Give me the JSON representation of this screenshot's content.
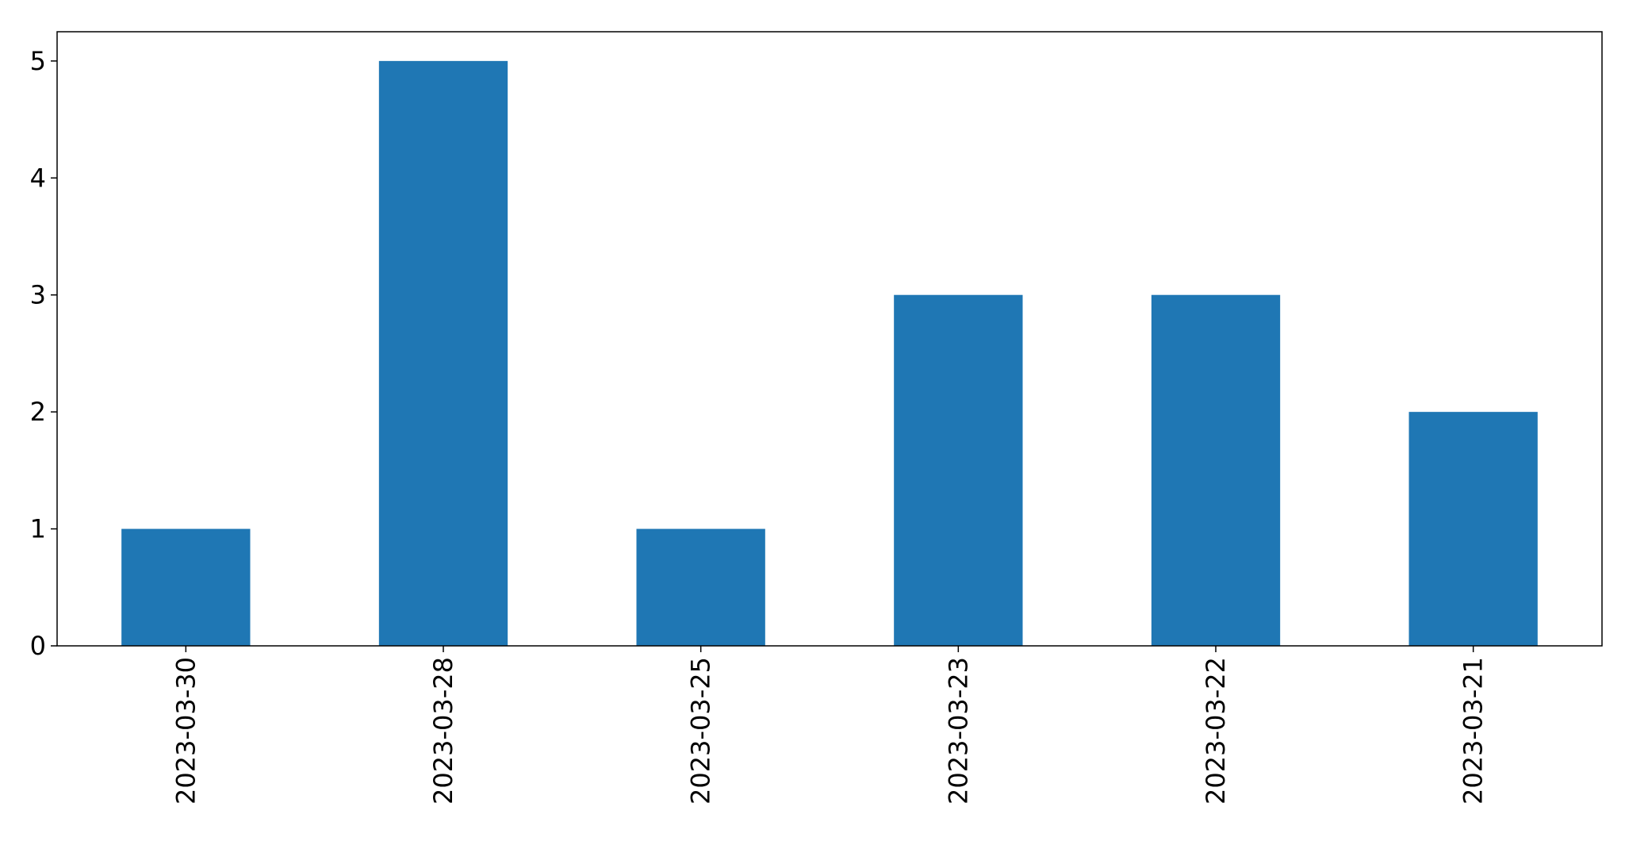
{
  "chart_data": {
    "type": "bar",
    "title": "",
    "xlabel": "",
    "ylabel": "",
    "categories": [
      "2023-03-30",
      "2023-03-28",
      "2023-03-25",
      "2023-03-23",
      "2023-03-22",
      "2023-03-21"
    ],
    "values": [
      1,
      5,
      1,
      3,
      3,
      2
    ],
    "ylim": [
      0,
      5.25
    ],
    "yticks": [
      0,
      1,
      2,
      3,
      4,
      5
    ],
    "bar_color": "#1f77b4",
    "grid": false,
    "legend": "none"
  }
}
